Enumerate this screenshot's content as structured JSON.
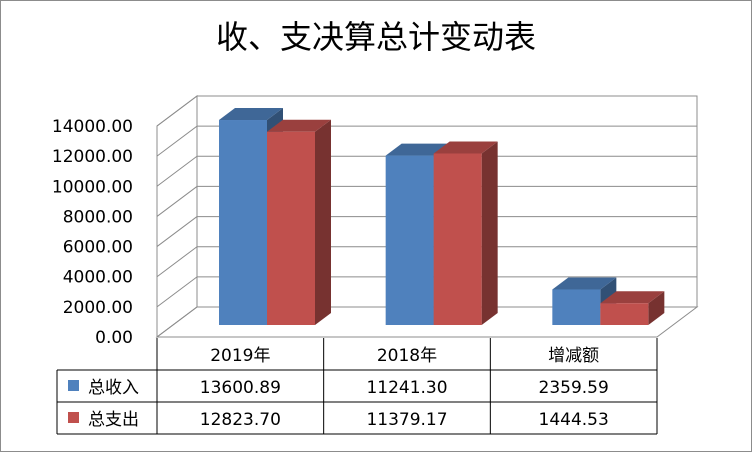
{
  "chart_data": {
    "type": "bar",
    "title": "收、支决算总计变动表",
    "categories": [
      "2019年",
      "2018年",
      "增减额"
    ],
    "series": [
      {
        "name": "总收入",
        "values": [
          13600.89,
          11241.3,
          2359.59
        ],
        "display": [
          "13600.89",
          "11241.30",
          "2359.59"
        ],
        "color": "#4f81bd"
      },
      {
        "name": "总支出",
        "values": [
          12823.7,
          11379.17,
          1444.53
        ],
        "display": [
          "12823.70",
          "11379.17",
          "1444.53"
        ],
        "color": "#c0504d"
      }
    ],
    "ylim": [
      0,
      14000
    ],
    "yticks": [
      "0.00",
      "2000.00",
      "4000.00",
      "6000.00",
      "8000.00",
      "10000.00",
      "12000.00",
      "14000.00"
    ],
    "grid": true,
    "legend": "data-table",
    "style": "3d-clustered-column"
  }
}
